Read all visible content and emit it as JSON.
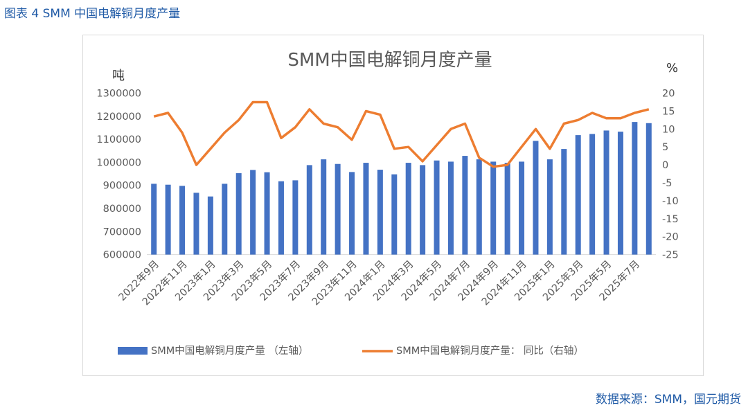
{
  "caption": "图表 4 SMM 中国电解铜月度产量",
  "source": "数据来源：SMM，国元期货",
  "colors": {
    "caption": "#1f5aa6",
    "bar": "#4472c4",
    "line": "#ed7d31",
    "text": "#595959"
  },
  "chart_data": {
    "type": "bar+line",
    "title": "SMM中国电解铜月度产量",
    "y_left_unit": "吨",
    "y_right_unit": "%",
    "y_left_range": [
      600000,
      1300000
    ],
    "y_right_range": [
      -25,
      20
    ],
    "y_left_ticks": [
      "600000",
      "700000",
      "800000",
      "900000",
      "1000000",
      "1100000",
      "1200000",
      "1300000"
    ],
    "y_right_ticks": [
      "-25",
      "-20",
      "-15",
      "-10",
      "-5",
      "0",
      "5",
      "10",
      "15",
      "20"
    ],
    "x_tick_labels": [
      "2022年9月",
      "2022年11月",
      "2023年1月",
      "2023年3月",
      "2023年5月",
      "2023年7月",
      "2023年9月",
      "2023年11月",
      "2024年1月",
      "2024年3月",
      "2024年5月",
      "2024年7月",
      "2024年9月",
      "2024年11月",
      "2025年1月",
      "2025年3月",
      "2025年5月",
      "2025年7月"
    ],
    "categories": [
      "2022年9月",
      "2022年10月",
      "2022年11月",
      "2022年12月",
      "2023年1月",
      "2023年2月",
      "2023年3月",
      "2023年4月",
      "2023年5月",
      "2023年6月",
      "2023年7月",
      "2023年8月",
      "2023年9月",
      "2023年10月",
      "2023年11月",
      "2023年12月",
      "2024年1月",
      "2024年2月",
      "2024年3月",
      "2024年4月",
      "2024年5月",
      "2024年6月",
      "2024年7月",
      "2024年8月",
      "2024年9月",
      "2024年10月",
      "2024年11月",
      "2024年12月",
      "2025年1月",
      "2025年2月",
      "2025年3月",
      "2025年4月",
      "2025年5月",
      "2025年6月",
      "2025年7月",
      "2025年8月"
    ],
    "series": [
      {
        "name": "SMM中国电解铜月度产量 （左轴）",
        "type": "bar",
        "axis": "left",
        "values": [
          907000,
          903000,
          898000,
          868000,
          852000,
          907000,
          953000,
          967000,
          957000,
          918000,
          922000,
          988000,
          1013000,
          993000,
          958000,
          998000,
          968000,
          948000,
          998000,
          988000,
          1008000,
          1003000,
          1028000,
          1013000,
          1003000,
          998000,
          1003000,
          1093000,
          1013000,
          1058000,
          1118000,
          1123000,
          1138000,
          1133000,
          1175000,
          1170000
        ]
      },
      {
        "name": "SMM中国电解铜月度产量： 同比（右轴）",
        "type": "line",
        "axis": "right",
        "values": [
          13.5,
          14.5,
          9,
          0,
          4.5,
          9,
          12.5,
          17.5,
          17.5,
          7.5,
          10.5,
          15.5,
          11.5,
          10.5,
          7,
          15,
          14,
          4.5,
          5,
          1,
          5.5,
          10,
          11.5,
          2,
          -0.5,
          0,
          5,
          10,
          4.5,
          11.5,
          12.5,
          14.5,
          13,
          13,
          14.5,
          15.5
        ]
      }
    ],
    "legend_position": "bottom",
    "grid": false
  }
}
